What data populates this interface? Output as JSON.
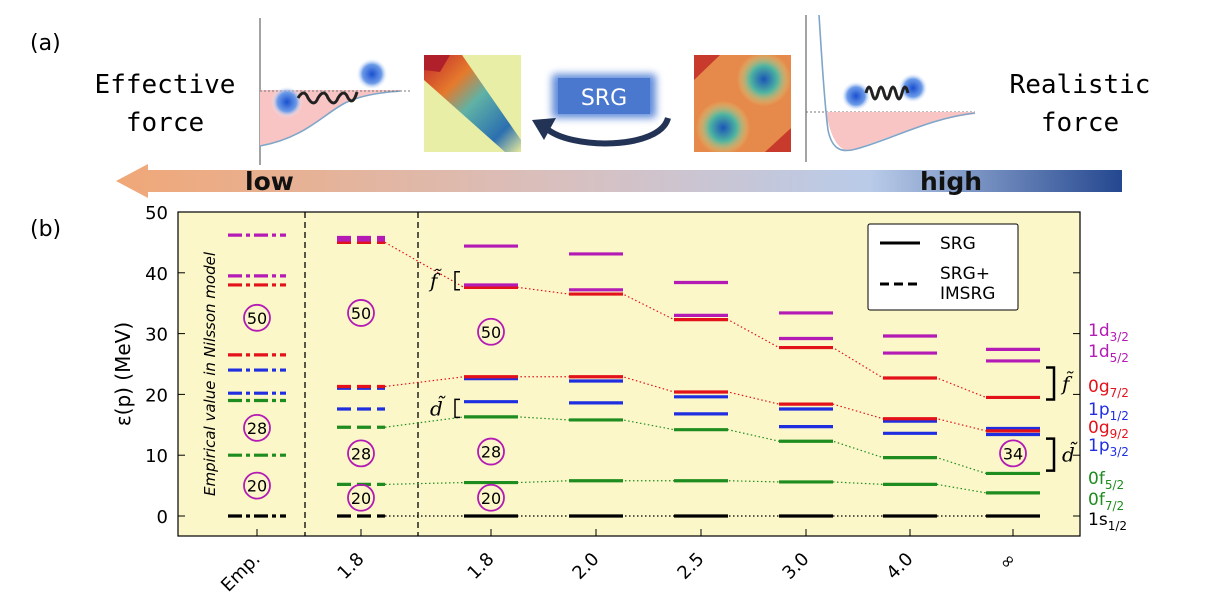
{
  "panel_a": {
    "label": "(a)",
    "left_text_1": "Effective",
    "left_text_2": "force",
    "right_text_1": "Realistic",
    "right_text_2": "force",
    "srg_label": "SRG",
    "arrow_low": "low",
    "arrow_high": "high"
  },
  "panel_b": {
    "label": "(b)",
    "vertical_note": "Empirical value in Nilsson model"
  },
  "colors": {
    "black": "#000000",
    "green": "#1e8c1e",
    "blue": "#1f2fe0",
    "red": "#e3121a",
    "magenta": "#b41ab4",
    "plot_bg": "#fbf7c8"
  },
  "chart_data": {
    "type": "level-scheme",
    "xlabel": "",
    "ylabel": "ε(p) (MeV)",
    "ylim": [
      0,
      50
    ],
    "yticks": [
      0,
      10,
      20,
      30,
      40,
      50
    ],
    "categories": [
      "Emp.",
      "1.8",
      "1.8",
      "2.0",
      "2.5",
      "3.0",
      "4.0",
      "∞"
    ],
    "column_styles": [
      "dashdot",
      "dashed",
      "solid",
      "solid",
      "solid",
      "solid",
      "solid",
      "solid"
    ],
    "legend": [
      {
        "label": "SRG",
        "style": "solid"
      },
      {
        "label": "SRG+\nIMSRG",
        "style": "dashed"
      }
    ],
    "legend_position": "top-right",
    "levels": [
      {
        "name": "1s1/2",
        "label_main": "1s",
        "label_sub": "1/2",
        "color": "black",
        "values": [
          0,
          0,
          0,
          0,
          0,
          0,
          0,
          0
        ]
      },
      {
        "name": "0f7/2",
        "label_main": "0f",
        "label_sub": "7/2",
        "color": "green",
        "values": [
          10.0,
          5.2,
          5.5,
          5.8,
          5.8,
          5.6,
          5.2,
          3.8
        ]
      },
      {
        "name": "0f5/2",
        "label_main": "0f",
        "label_sub": "5/2",
        "color": "green",
        "values": [
          19.0,
          14.6,
          16.3,
          15.8,
          14.2,
          12.3,
          9.6,
          7.0
        ]
      },
      {
        "name": "1p3/2",
        "label_main": "1p",
        "label_sub": "3/2",
        "color": "blue",
        "values": [
          20.2,
          17.6,
          18.8,
          18.6,
          16.8,
          14.7,
          13.6,
          13.4
        ]
      },
      {
        "name": "1p1/2",
        "label_main": "1p",
        "label_sub": "1/2",
        "color": "blue",
        "values": [
          24.0,
          21.0,
          22.6,
          22.2,
          19.6,
          17.6,
          15.6,
          14.4
        ]
      },
      {
        "name": "0g9/2",
        "label_main": "0g",
        "label_sub": "9/2",
        "color": "red",
        "values": [
          26.5,
          21.3,
          22.9,
          22.9,
          20.4,
          18.4,
          16.0,
          14.0
        ]
      },
      {
        "name": "0g7/2",
        "label_main": "0g",
        "label_sub": "7/2",
        "color": "red",
        "values": [
          38.0,
          45.0,
          37.6,
          36.5,
          32.3,
          27.7,
          22.7,
          19.5
        ]
      },
      {
        "name": "1d5/2",
        "label_main": "1d",
        "label_sub": "5/2",
        "color": "magenta",
        "values": [
          39.5,
          45.4,
          38.0,
          37.2,
          33.0,
          29.2,
          26.8,
          25.5
        ]
      },
      {
        "name": "1d3/2",
        "label_main": "1d",
        "label_sub": "3/2",
        "color": "magenta",
        "values": [
          46.2,
          45.8,
          44.4,
          43.1,
          38.4,
          33.4,
          29.6,
          27.4
        ]
      }
    ],
    "trend_lines": [
      {
        "level": "0g7/2",
        "color": "red",
        "from_column": 1
      },
      {
        "level": "0g9/2",
        "color": "red",
        "from_column": 1
      },
      {
        "level": "0f5/2",
        "color": "green",
        "from_column": 1
      },
      {
        "level": "0f7/2",
        "color": "green",
        "from_column": 1
      },
      {
        "level": "1s1/2",
        "color": "black",
        "from_column": 1
      }
    ],
    "magic_numbers": [
      {
        "label": "50",
        "column": 0,
        "value": 32.6
      },
      {
        "label": "28",
        "column": 0,
        "value": 14.5
      },
      {
        "label": "20",
        "column": 0,
        "value": 5.0
      },
      {
        "label": "50",
        "column": 1,
        "value": 33.4
      },
      {
        "label": "28",
        "column": 1,
        "value": 10.3
      },
      {
        "label": "20",
        "column": 1,
        "value": 3.0
      },
      {
        "label": "50",
        "column": 2,
        "value": 30.3
      },
      {
        "label": "28",
        "column": 2,
        "value": 10.6
      },
      {
        "label": "20",
        "column": 2,
        "value": 3.0
      },
      {
        "label": "34",
        "column": 7,
        "value": 10.3
      }
    ],
    "annotations": [
      {
        "text": "f̃",
        "value": 38.7,
        "column": "between-1-2"
      },
      {
        "text": "d̃",
        "value": 17.7,
        "column": "between-1-2"
      },
      {
        "text": "f̃",
        "value": 21.8,
        "column": "right"
      },
      {
        "text": "d̃",
        "value": 10.1,
        "column": "right"
      }
    ]
  }
}
